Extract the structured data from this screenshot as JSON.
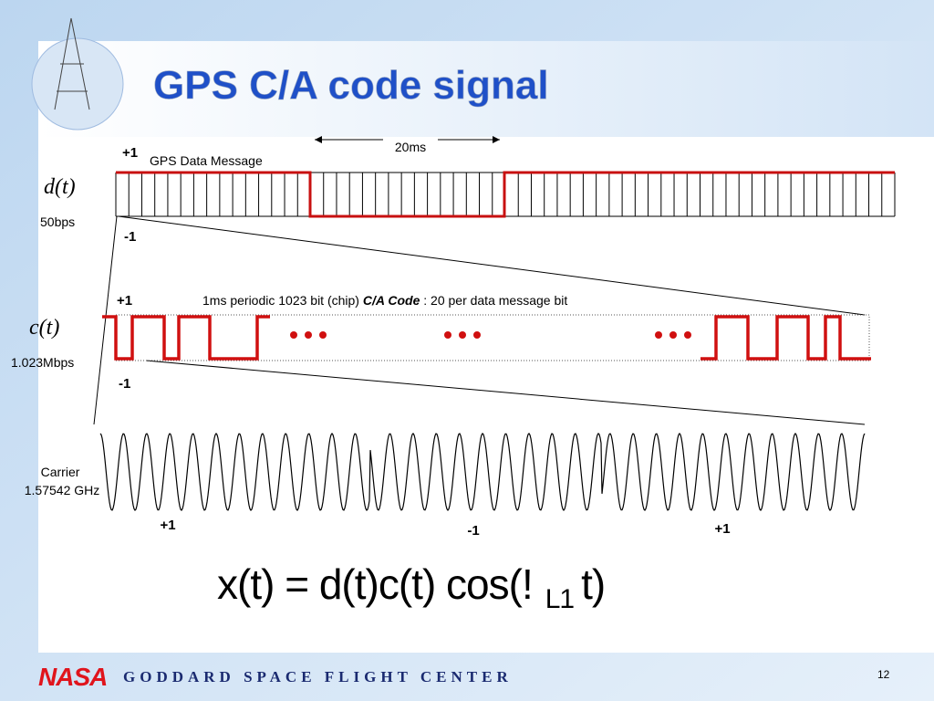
{
  "header": {
    "title": "GPS C/A code signal"
  },
  "data_message": {
    "period": "20ms",
    "plus": "+1",
    "label": "GPS Data Message",
    "symbol": "d(t)",
    "rate": "50bps",
    "minus": "-1"
  },
  "ca_code": {
    "plus": "+1",
    "label_prefix": "1ms periodic 1023 bit (chip) ",
    "label_emphasis": "C/A Code",
    "label_suffix": " : 20 per data message bit",
    "symbol": "c(t)",
    "rate": "1.023Mbps",
    "minus": "-1"
  },
  "carrier": {
    "label": "Carrier",
    "frequency": "1.57542 GHz",
    "signs": [
      "+1",
      "-1",
      "+1"
    ]
  },
  "formula": {
    "main": "x(t) = d(t)c(t) cos(!",
    "subscript": "L1",
    "tail": "t)"
  },
  "footer": {
    "logo": "NASA",
    "organization": "GODDARD SPACE FLIGHT CENTER",
    "page": "12"
  }
}
